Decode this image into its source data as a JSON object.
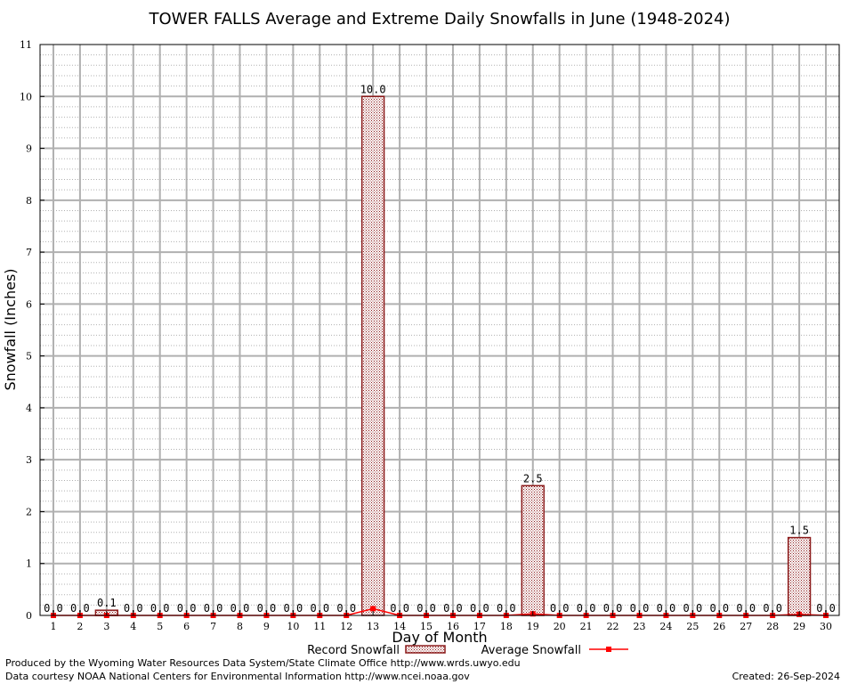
{
  "chart_data": {
    "type": "bar",
    "title": "TOWER FALLS Average and Extreme Daily Snowfalls in June (1948-2024)",
    "xlabel": "Day of Month",
    "ylabel": "Snowfall (Inches)",
    "ylim": [
      0,
      11
    ],
    "yticks": [
      0,
      1,
      2,
      3,
      4,
      5,
      6,
      7,
      8,
      9,
      10,
      11
    ],
    "minor_y_step": 0.2,
    "grid": true,
    "categories": [
      1,
      2,
      3,
      4,
      5,
      6,
      7,
      8,
      9,
      10,
      11,
      12,
      13,
      14,
      15,
      16,
      17,
      18,
      19,
      20,
      21,
      22,
      23,
      24,
      25,
      26,
      27,
      28,
      29,
      30
    ],
    "series": [
      {
        "name": "Record Snowfall",
        "kind": "bar",
        "color": "#b22222",
        "values": [
          0.0,
          0.0,
          0.1,
          0.0,
          0.0,
          0.0,
          0.0,
          0.0,
          0.0,
          0.0,
          0.0,
          0.0,
          10.0,
          0.0,
          0.0,
          0.0,
          0.0,
          0.0,
          2.5,
          0.0,
          0.0,
          0.0,
          0.0,
          0.0,
          0.0,
          0.0,
          0.0,
          0.0,
          1.5,
          0.0
        ],
        "labels": [
          "0.0",
          "0.0",
          "0.1",
          "0.0",
          "0.0",
          "0.0",
          "0.0",
          "0.0",
          "0.0",
          "0.0",
          "0.0",
          "0.0",
          "10.0",
          "0.0",
          "0.0",
          "0.0",
          "0.0",
          "0.0",
          "2.5",
          "0.0",
          "0.0",
          "0.0",
          "0.0",
          "0.0",
          "0.0",
          "0.0",
          "0.0",
          "0.0",
          "1.5",
          "0.0"
        ]
      },
      {
        "name": "Average Snowfall",
        "kind": "line",
        "color": "#ff0000",
        "values": [
          0.0,
          0.0,
          0.0,
          0.0,
          0.0,
          0.0,
          0.0,
          0.0,
          0.0,
          0.0,
          0.0,
          0.0,
          0.13,
          0.0,
          0.0,
          0.0,
          0.0,
          0.0,
          0.03,
          0.0,
          0.0,
          0.0,
          0.0,
          0.0,
          0.0,
          0.0,
          0.0,
          0.0,
          0.02,
          0.0
        ]
      }
    ],
    "legend_position": "bottom"
  },
  "footer": {
    "producer": "Produced by the Wyoming Water Resources Data System/State Climate Office http://www.wrds.uwyo.edu",
    "courtesy": "Data courtesy NOAA National Centers for Environmental Information http://www.ncei.noaa.gov",
    "created": "Created:  26-Sep-2024"
  }
}
